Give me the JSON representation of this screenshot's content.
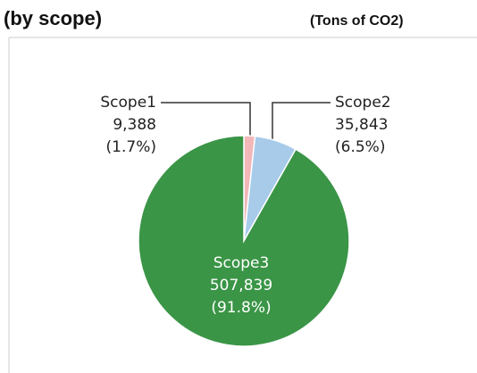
{
  "chart_data": {
    "type": "pie",
    "title": "(by scope)",
    "unit": "(Tons of CO2)",
    "categories": [
      "Scope1",
      "Scope2",
      "Scope3"
    ],
    "values": [
      9388,
      35843,
      507839
    ],
    "value_labels": [
      "9,388",
      "35,843",
      "507,839"
    ],
    "percentages": [
      1.7,
      6.5,
      91.8
    ],
    "percentage_labels": [
      "(1.7%)",
      "(6.5%)",
      "(91.8%)"
    ],
    "colors": [
      "#f2b7b9",
      "#a7cbe9",
      "#3a9546"
    ]
  }
}
